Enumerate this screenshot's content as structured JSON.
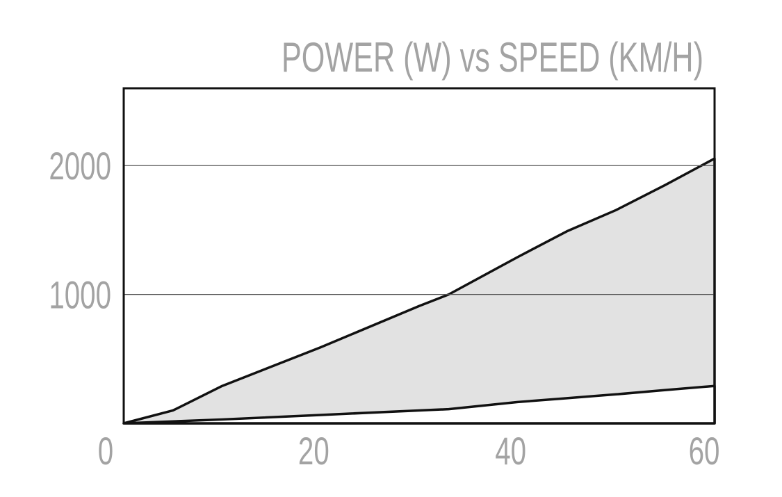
{
  "chart_data": {
    "type": "area",
    "title": "POWER (W) vs SPEED (KM/H)",
    "x": [
      0,
      5,
      10,
      20,
      30,
      33,
      40,
      45,
      50,
      55,
      60
    ],
    "series": [
      {
        "color": "#111111",
        "fill": "#e2e2e2",
        "values": [
          0,
          100,
          290,
          590,
          910,
          1000,
          1290,
          1490,
          1655,
          1850,
          2055
        ]
      },
      {
        "color": "#111111",
        "fill": "#ffffff",
        "values": [
          0,
          15,
          30,
          65,
          100,
          110,
          165,
          195,
          225,
          258,
          290
        ]
      }
    ],
    "xlim": [
      0,
      60
    ],
    "xticks": [
      0,
      20,
      40,
      60
    ],
    "ylim": [
      0,
      2600
    ],
    "yticks": [
      1000,
      2000
    ],
    "grid": true
  }
}
